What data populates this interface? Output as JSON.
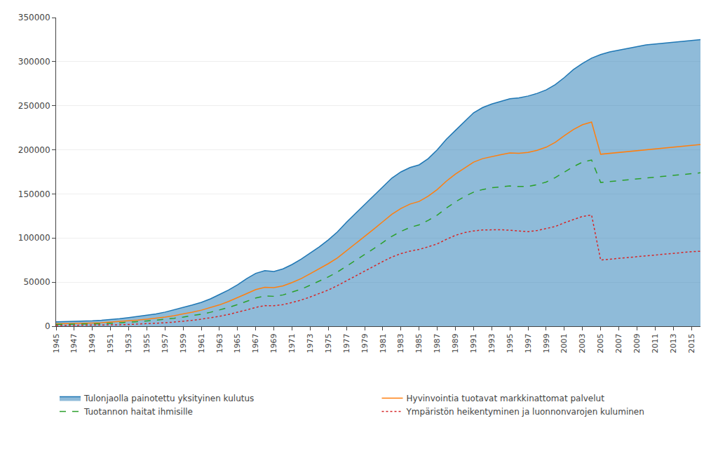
{
  "chart_data": {
    "type": "line",
    "x": [
      1945,
      1946,
      1947,
      1948,
      1949,
      1950,
      1951,
      1952,
      1953,
      1954,
      1955,
      1956,
      1957,
      1958,
      1959,
      1960,
      1961,
      1962,
      1963,
      1964,
      1965,
      1966,
      1967,
      1968,
      1969,
      1970,
      1971,
      1972,
      1973,
      1974,
      1975,
      1976,
      1977,
      1978,
      1979,
      1980,
      1981,
      1982,
      1983,
      1984,
      1985,
      1986,
      1987,
      1988,
      1989,
      1990,
      1991,
      1992,
      1993,
      1994,
      1995,
      1996,
      1997,
      1998,
      1999,
      2000,
      2001,
      2002,
      2003,
      2004,
      2005,
      2006,
      2007,
      2008,
      2009,
      2010,
      2011,
      2012,
      2013,
      2014,
      2015,
      2016
    ],
    "series": [
      {
        "name": "Tulonjaolla painotettu yksityinen kulutus",
        "type": "area",
        "values": [
          5000,
          5200,
          5500,
          5800,
          6200,
          6800,
          7500,
          8500,
          9800,
          11000,
          12500,
          14000,
          16000,
          18500,
          21000,
          24000,
          27000,
          31000,
          36000,
          41000,
          47000,
          54000,
          60000,
          63000,
          62000,
          65000,
          70000,
          76000,
          83000,
          90000,
          98000,
          107000,
          118000,
          128000,
          138000,
          148000,
          158000,
          168000,
          175000,
          180000,
          183000,
          190000,
          200000,
          212000,
          222000,
          232000,
          242000,
          248000,
          252000,
          255000,
          258000,
          259000,
          261000,
          264000,
          268000,
          274000,
          282000,
          291000,
          298000,
          304000,
          308000,
          311000,
          313000,
          315000,
          317000,
          319000,
          320000,
          321000,
          322000,
          323000,
          324000,
          325000
        ]
      },
      {
        "name": "Hyvinvointia tuotavat markkinattomat palvelut",
        "type": "line",
        "line_style": "solid",
        "values": [
          2800,
          2900,
          3100,
          3300,
          3600,
          4000,
          4600,
          5200,
          6000,
          6900,
          7900,
          9000,
          10300,
          12000,
          13800,
          15900,
          18200,
          21000,
          24200,
          28000,
          32200,
          37000,
          41500,
          44200,
          43800,
          45800,
          49500,
          54000,
          59500,
          65000,
          71000,
          77500,
          85500,
          93500,
          101500,
          110000,
          118500,
          127000,
          133500,
          138500,
          141500,
          147500,
          155000,
          164500,
          172500,
          179500,
          186000,
          190000,
          192500,
          194500,
          196500,
          196000,
          197000,
          199500,
          203000,
          208500,
          216000,
          223000,
          228500,
          231500,
          195000,
          196000,
          197000,
          198000,
          199000,
          200000,
          201000,
          202000,
          203000,
          204000,
          205000,
          206000
        ]
      },
      {
        "name": "Tuotannon haitat ihmisille",
        "type": "line",
        "line_style": "dashed",
        "values": [
          2000,
          2100,
          2250,
          2400,
          2600,
          2900,
          3300,
          3800,
          4400,
          5100,
          5900,
          6800,
          7700,
          9000,
          10400,
          11900,
          13700,
          15800,
          18300,
          21200,
          24500,
          28200,
          32000,
          34200,
          33900,
          35500,
          38500,
          42000,
          46500,
          51000,
          56000,
          61500,
          68000,
          74500,
          81000,
          88000,
          95000,
          102000,
          107500,
          112000,
          115000,
          120000,
          126000,
          134000,
          141000,
          147000,
          152000,
          155000,
          157000,
          158000,
          159000,
          158500,
          158500,
          160500,
          163500,
          168500,
          175000,
          181000,
          186000,
          188500,
          163000,
          164000,
          165000,
          166000,
          167000,
          168000,
          169000,
          170000,
          171000,
          172000,
          173000,
          174000
        ]
      },
      {
        "name": "Ympäristön heikentyminen ja luonnonvarojen kuluminen",
        "type": "line",
        "line_style": "dotted",
        "values": [
          800,
          850,
          900,
          980,
          1070,
          1220,
          1430,
          1680,
          2000,
          2360,
          2780,
          3280,
          3880,
          4680,
          5580,
          6680,
          7980,
          9480,
          11280,
          13380,
          15680,
          18480,
          21380,
          23380,
          23280,
          24480,
          26880,
          29680,
          33180,
          36980,
          41080,
          46080,
          51580,
          57180,
          62580,
          68180,
          73380,
          78480,
          82380,
          85180,
          87080,
          90080,
          93380,
          98480,
          103080,
          106180,
          108080,
          109080,
          109380,
          109480,
          108780,
          107980,
          107280,
          108480,
          110480,
          113080,
          117280,
          121080,
          124480,
          126180,
          75000,
          76000,
          77000,
          78000,
          79000,
          80000,
          81000,
          82000,
          83000,
          84000,
          84500,
          85000
        ]
      }
    ],
    "xlim": [
      1945,
      2016
    ],
    "xticks": [
      1945,
      1947,
      1949,
      1951,
      1953,
      1955,
      1957,
      1959,
      1961,
      1963,
      1965,
      1967,
      1969,
      1971,
      1973,
      1975,
      1977,
      1979,
      1981,
      1983,
      1985,
      1987,
      1989,
      1991,
      1993,
      1995,
      1997,
      1999,
      2001,
      2003,
      2005,
      2007,
      2009,
      2011,
      2013,
      2015
    ],
    "ylim": [
      0,
      350000
    ],
    "yticks": [
      0,
      50000,
      100000,
      150000,
      200000,
      250000,
      300000,
      350000
    ],
    "grid": "y",
    "legend": "bottom"
  }
}
